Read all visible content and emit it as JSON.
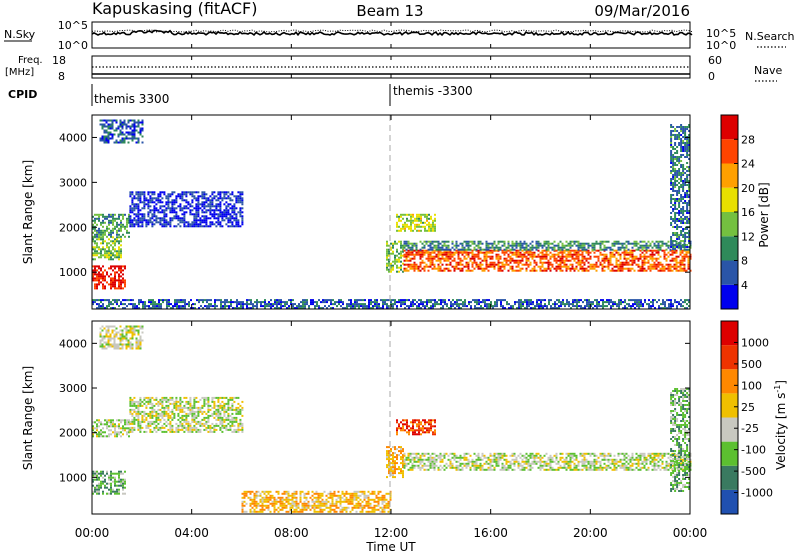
{
  "header": {
    "station": "Kapuskasing (fitACF)",
    "beam": "Beam 13",
    "date": "09/Mar/2016"
  },
  "noise_panel": {
    "left_label": "N.Sky",
    "right_label": "N.Search",
    "left_ticks": [
      "10^5",
      "10^0"
    ],
    "right_ticks": [
      "10^5",
      "10^0"
    ]
  },
  "freq_panel": {
    "left_label_1": "Freq.",
    "left_label_2": "[MHz]",
    "right_label": "Nave",
    "left_ticks": [
      "18",
      "8"
    ],
    "right_ticks": [
      "60",
      "0"
    ]
  },
  "cpid": {
    "label": "CPID",
    "segments": [
      {
        "name": "themis 3300",
        "start_hour": 0
      },
      {
        "name": "themis -3300",
        "start_hour": 12
      }
    ]
  },
  "x_axis": {
    "label": "Time UT",
    "ticks": [
      "00:00",
      "04:00",
      "08:00",
      "12:00",
      "16:00",
      "20:00",
      "00:00"
    ],
    "range_hours": [
      0,
      24
    ]
  },
  "chart_data": [
    {
      "type": "heatmap",
      "panel": "power",
      "ylabel": "Slant Range [km]",
      "ylim": [
        180,
        4500
      ],
      "yticks": [
        "1000",
        "2000",
        "3000",
        "4000"
      ],
      "colorbar_label": "Power [dB]",
      "colorbar_ticks": [
        "28",
        "24",
        "20",
        "16",
        "12",
        "8",
        "4"
      ],
      "colors": [
        "#0000ee",
        "#2a55a8",
        "#2f8a5a",
        "#74c040",
        "#e8e000",
        "#ffa000",
        "#ff4400",
        "#dd0000"
      ],
      "regions": [
        {
          "t0": 0.0,
          "t1": 1.3,
          "r0": 650,
          "r1": 1150,
          "level": 0.9
        },
        {
          "t0": 0.0,
          "t1": 1.2,
          "r0": 1300,
          "r1": 1800,
          "level": 0.45
        },
        {
          "t0": 0.0,
          "t1": 1.5,
          "r0": 1800,
          "r1": 2300,
          "level": 0.35
        },
        {
          "t0": 0.3,
          "t1": 2.0,
          "r0": 3900,
          "r1": 4400,
          "level": 0.2
        },
        {
          "t0": 1.5,
          "t1": 6.0,
          "r0": 2000,
          "r1": 2800,
          "level": 0.1
        },
        {
          "t0": 12.2,
          "t1": 13.8,
          "r0": 1900,
          "r1": 2300,
          "level": 0.5
        },
        {
          "t0": 11.8,
          "t1": 12.5,
          "r0": 1000,
          "r1": 1700,
          "level": 0.45
        },
        {
          "t0": 12.5,
          "t1": 24.0,
          "r0": 1050,
          "r1": 1500,
          "level": 0.8
        },
        {
          "t0": 12.5,
          "t1": 24.0,
          "r0": 1500,
          "r1": 1700,
          "level": 0.3
        },
        {
          "t0": 23.2,
          "t1": 24.0,
          "r0": 1500,
          "r1": 4300,
          "level": 0.25
        },
        {
          "t0": 0.0,
          "t1": 24.0,
          "r0": 200,
          "r1": 400,
          "level": 0.2
        }
      ]
    },
    {
      "type": "heatmap",
      "panel": "velocity",
      "ylabel": "Slant Range [km]",
      "ylim": [
        180,
        4500
      ],
      "yticks": [
        "1000",
        "2000",
        "3000",
        "4000"
      ],
      "colorbar_label": "Velocity [m s^-1]",
      "colorbar_ticks": [
        "1000",
        "500",
        "100",
        "25",
        "-25",
        "-100",
        "-500",
        "-1000"
      ],
      "colors": [
        "#2050b0",
        "#3a7a60",
        "#5cc030",
        "#c8c8c0",
        "#f0c000",
        "#ff8800",
        "#ee3300",
        "#dd0000"
      ],
      "regions": [
        {
          "t0": 0.0,
          "t1": 1.3,
          "r0": 650,
          "r1": 1150,
          "level": 0.3
        },
        {
          "t0": 0.0,
          "t1": 1.5,
          "r0": 1900,
          "r1": 2300,
          "level": 0.4
        },
        {
          "t0": 0.3,
          "t1": 2.0,
          "r0": 3900,
          "r1": 4400,
          "level": 0.45
        },
        {
          "t0": 1.5,
          "t1": 6.0,
          "r0": 2000,
          "r1": 2800,
          "level": 0.42
        },
        {
          "t0": 12.2,
          "t1": 13.8,
          "r0": 1950,
          "r1": 2300,
          "level": 0.82
        },
        {
          "t0": 11.8,
          "t1": 12.5,
          "r0": 1000,
          "r1": 1700,
          "level": 0.6
        },
        {
          "t0": 12.5,
          "t1": 24.0,
          "r0": 1150,
          "r1": 1550,
          "level": 0.42
        },
        {
          "t0": 6.0,
          "t1": 12.0,
          "r0": 250,
          "r1": 700,
          "level": 0.6
        },
        {
          "t0": 23.2,
          "t1": 24.0,
          "r0": 700,
          "r1": 3000,
          "level": 0.3
        }
      ]
    }
  ]
}
